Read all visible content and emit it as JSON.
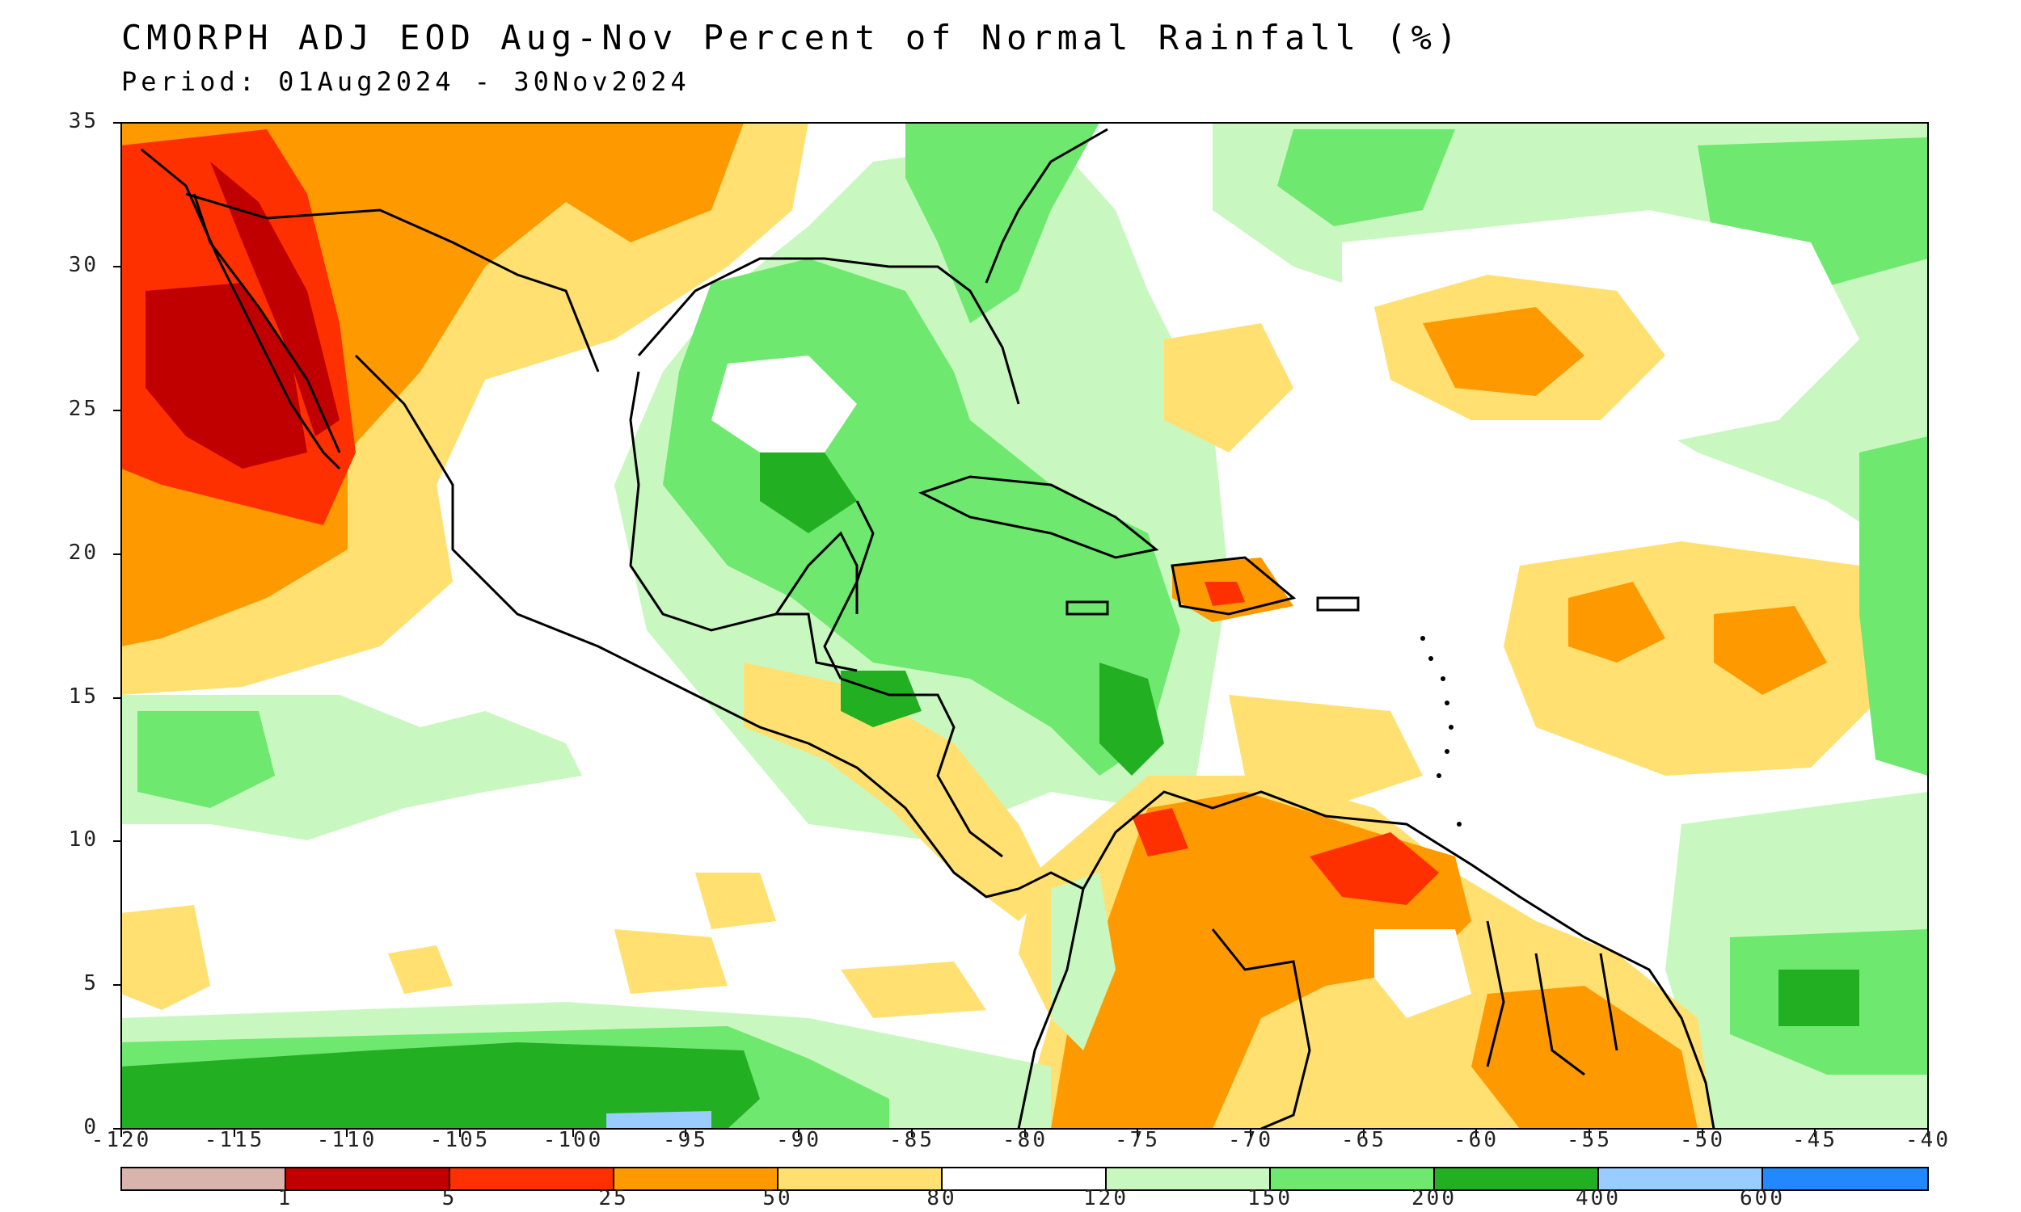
{
  "map": {
    "title": "CMORPH ADJ EOD Aug-Nov Percent of Normal Rainfall (%)",
    "period": "Period: 01Aug2024 - 30Nov2024",
    "lat_labels": [
      "35",
      "30",
      "25",
      "20",
      "15",
      "10",
      "5",
      "0"
    ],
    "lon_labels": [
      "-120",
      "-115",
      "-110",
      "-105",
      "-100",
      "-95",
      "-90",
      "-85",
      "-80",
      "-75",
      "-70",
      "-65",
      "-60",
      "-55",
      "-50",
      "-45",
      "-40"
    ],
    "colorbar": {
      "labels": [
        "1",
        "5",
        "25",
        "50",
        "80",
        "120",
        "150",
        "200",
        "400",
        "600"
      ],
      "colors": [
        "#d8b4ac",
        "#c00000",
        "#ff3000",
        "#ff9900",
        "#ffe070",
        "#ffffff",
        "#c8f8c0",
        "#6ee86e",
        "#22b022",
        "#99ccff",
        "#2288ff"
      ]
    },
    "field_colors": {
      "deep_red": "#c00000",
      "red": "#ff3000",
      "orange": "#ff9900",
      "yellow": "#ffe070",
      "white": "#ffffff",
      "light_green": "#c8f8c0",
      "green": "#6ee86e",
      "dark_green": "#22b022",
      "light_blue": "#99ccff",
      "pink": "#d8b4ac"
    }
  }
}
